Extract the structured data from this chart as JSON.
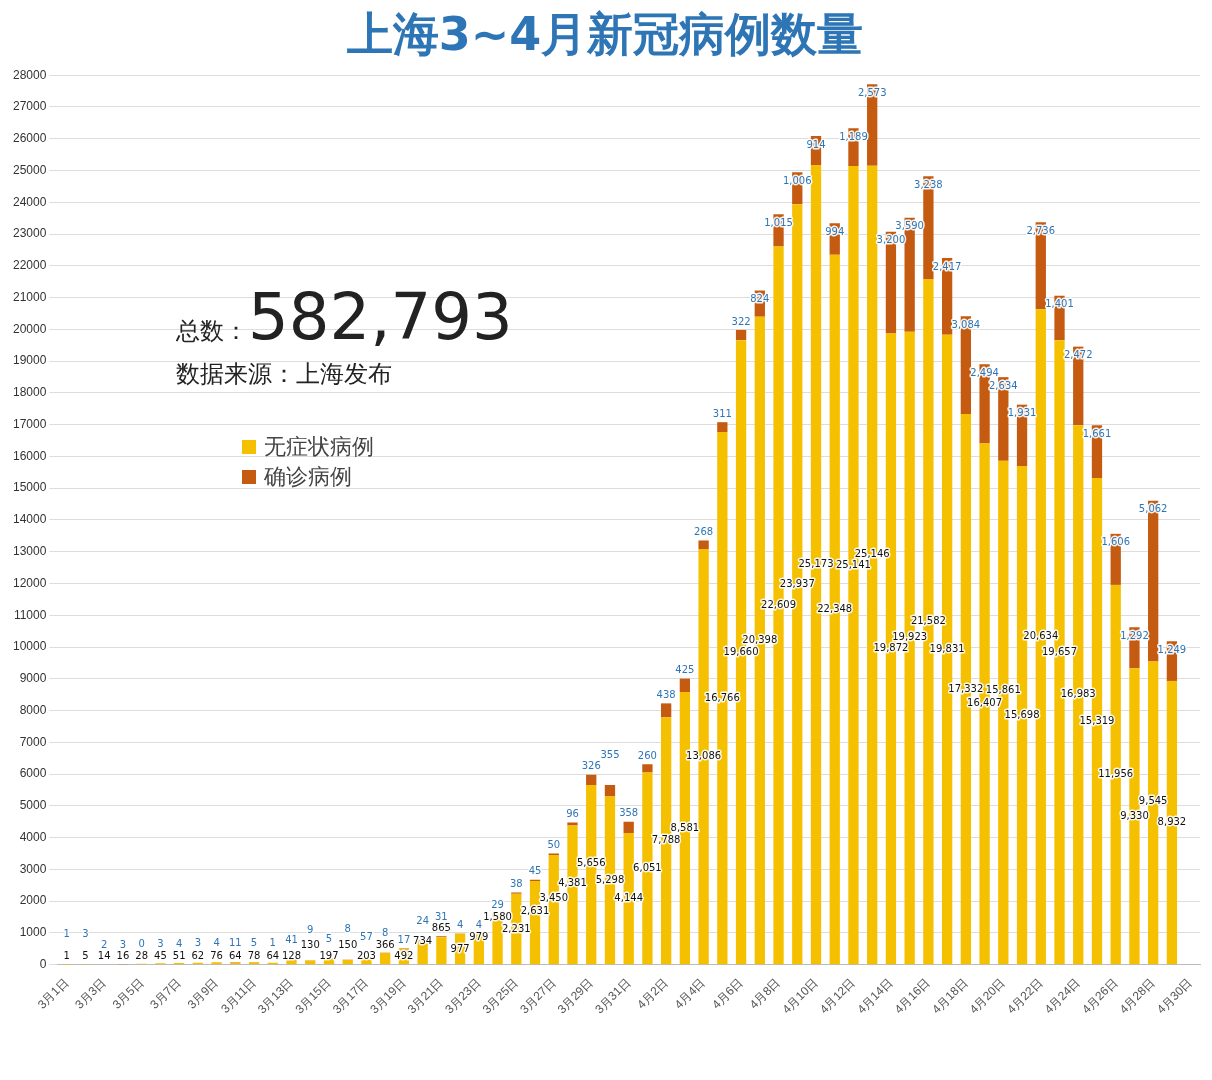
{
  "chart_data": {
    "type": "bar",
    "title": "上海3~4月新冠病例数量",
    "stacked": true,
    "categories": [
      "3月1日",
      null,
      "3月3日",
      null,
      "3月5日",
      null,
      "3月7日",
      null,
      "3月9日",
      null,
      "3月11日",
      null,
      "3月13日",
      null,
      "3月15日",
      null,
      "3月17日",
      null,
      "3月19日",
      null,
      "3月21日",
      null,
      "3月23日",
      null,
      "3月25日",
      null,
      "3月27日",
      null,
      "3月29日",
      null,
      "3月31日",
      null,
      "4月2日",
      null,
      "4月4日",
      null,
      "4月6日",
      null,
      "4月8日",
      null,
      "4月10日",
      null,
      "4月12日",
      null,
      "4月14日",
      null,
      "4月16日",
      null,
      "4月18日",
      null,
      "4月20日",
      null,
      "4月22日",
      null,
      "4月24日",
      null,
      "4月26日",
      null,
      "4月28日",
      null,
      "4月30日"
    ],
    "series": [
      {
        "name": "无症状病例",
        "color": "#f5c000",
        "values": [
          1,
          5,
          14,
          16,
          28,
          45,
          51,
          62,
          76,
          64,
          78,
          64,
          128,
          130,
          197,
          150,
          203,
          366,
          492,
          734,
          865,
          977,
          979,
          1580,
          2231,
          2631,
          3450,
          4381,
          5656,
          5298,
          4144,
          6051,
          7788,
          8581,
          13086,
          16766,
          19660,
          20398,
          22609,
          23937,
          25173,
          22348,
          25141,
          25146,
          19872,
          19923,
          21582,
          19831,
          17332,
          16407,
          15861,
          15698,
          20634,
          19657,
          16983,
          15319,
          11956,
          9330,
          9545,
          8932,
          null
        ],
        "value_labels": [
          "1",
          "5",
          "14",
          "16",
          "28",
          "45",
          "51",
          "62",
          "76",
          "64",
          "78",
          "64",
          "128",
          "130",
          "197",
          "150",
          "203",
          "366",
          "492",
          "734",
          "865",
          "977",
          "979",
          "1,580",
          "2,231",
          "2,631",
          "3,450",
          "4,381",
          "5,656",
          "5,298",
          "4,144",
          "6,051",
          "7,788",
          "8,581",
          "13,086",
          "16,766",
          "19,660",
          "20,398",
          "22,609",
          "23,937",
          "25,173",
          "22,348",
          "25,141",
          "25,146",
          "19,872",
          "19,923",
          "21,582",
          "19,831",
          "17,332",
          "16,407",
          "15,861",
          "15,698",
          "20,634",
          "19,657",
          "16,983",
          "15,319",
          "11,956",
          "9,330",
          "9,545",
          "8,932",
          null
        ]
      },
      {
        "name": "确诊病例",
        "color": "#c55a11",
        "values": [
          1,
          3,
          2,
          3,
          0,
          3,
          4,
          3,
          4,
          11,
          5,
          1,
          41,
          9,
          5,
          8,
          57,
          8,
          17,
          24,
          31,
          4,
          4,
          29,
          38,
          45,
          50,
          96,
          326,
          355,
          358,
          260,
          438,
          425,
          268,
          311,
          322,
          824,
          1015,
          1006,
          914,
          994,
          1189,
          2573,
          3200,
          3590,
          3238,
          2417,
          3084,
          2494,
          2634,
          1931,
          2736,
          1401,
          2472,
          1661,
          1606,
          1292,
          5062,
          1249,
          null
        ],
        "value_labels": [
          "1",
          "3",
          "2",
          "3",
          "0",
          "3",
          "4",
          "3",
          "4",
          "11",
          "5",
          "1",
          "41",
          "9",
          "5",
          "8",
          "57",
          "8",
          "17",
          "24",
          "31",
          "4",
          "4",
          "29",
          "38",
          "45",
          "50",
          "96",
          "326",
          "355",
          "358",
          "260",
          "438",
          "425",
          "268",
          "311",
          "322",
          "824",
          "1,015",
          "1,006",
          "914",
          "994",
          "1,189",
          "2,573",
          "3,200",
          "3,590",
          "3,238",
          "2,417",
          "3,084",
          "2,494",
          "2,634",
          "1,931",
          "2,736",
          "1,401",
          "2,472",
          "1,661",
          "1,606",
          "1,292",
          "5,062",
          "1,249",
          null
        ]
      }
    ],
    "ylim": [
      0,
      28000
    ],
    "yticks": [
      0,
      1000,
      2000,
      3000,
      4000,
      5000,
      6000,
      7000,
      8000,
      9000,
      10000,
      11000,
      12000,
      13000,
      14000,
      15000,
      16000,
      17000,
      18000,
      19000,
      20000,
      21000,
      22000,
      23000,
      24000,
      25000,
      26000,
      27000,
      28000
    ],
    "grid": "y",
    "legend": "left",
    "annotations": [
      "总数：582,793",
      "数据来源：上海发布"
    ]
  }
}
